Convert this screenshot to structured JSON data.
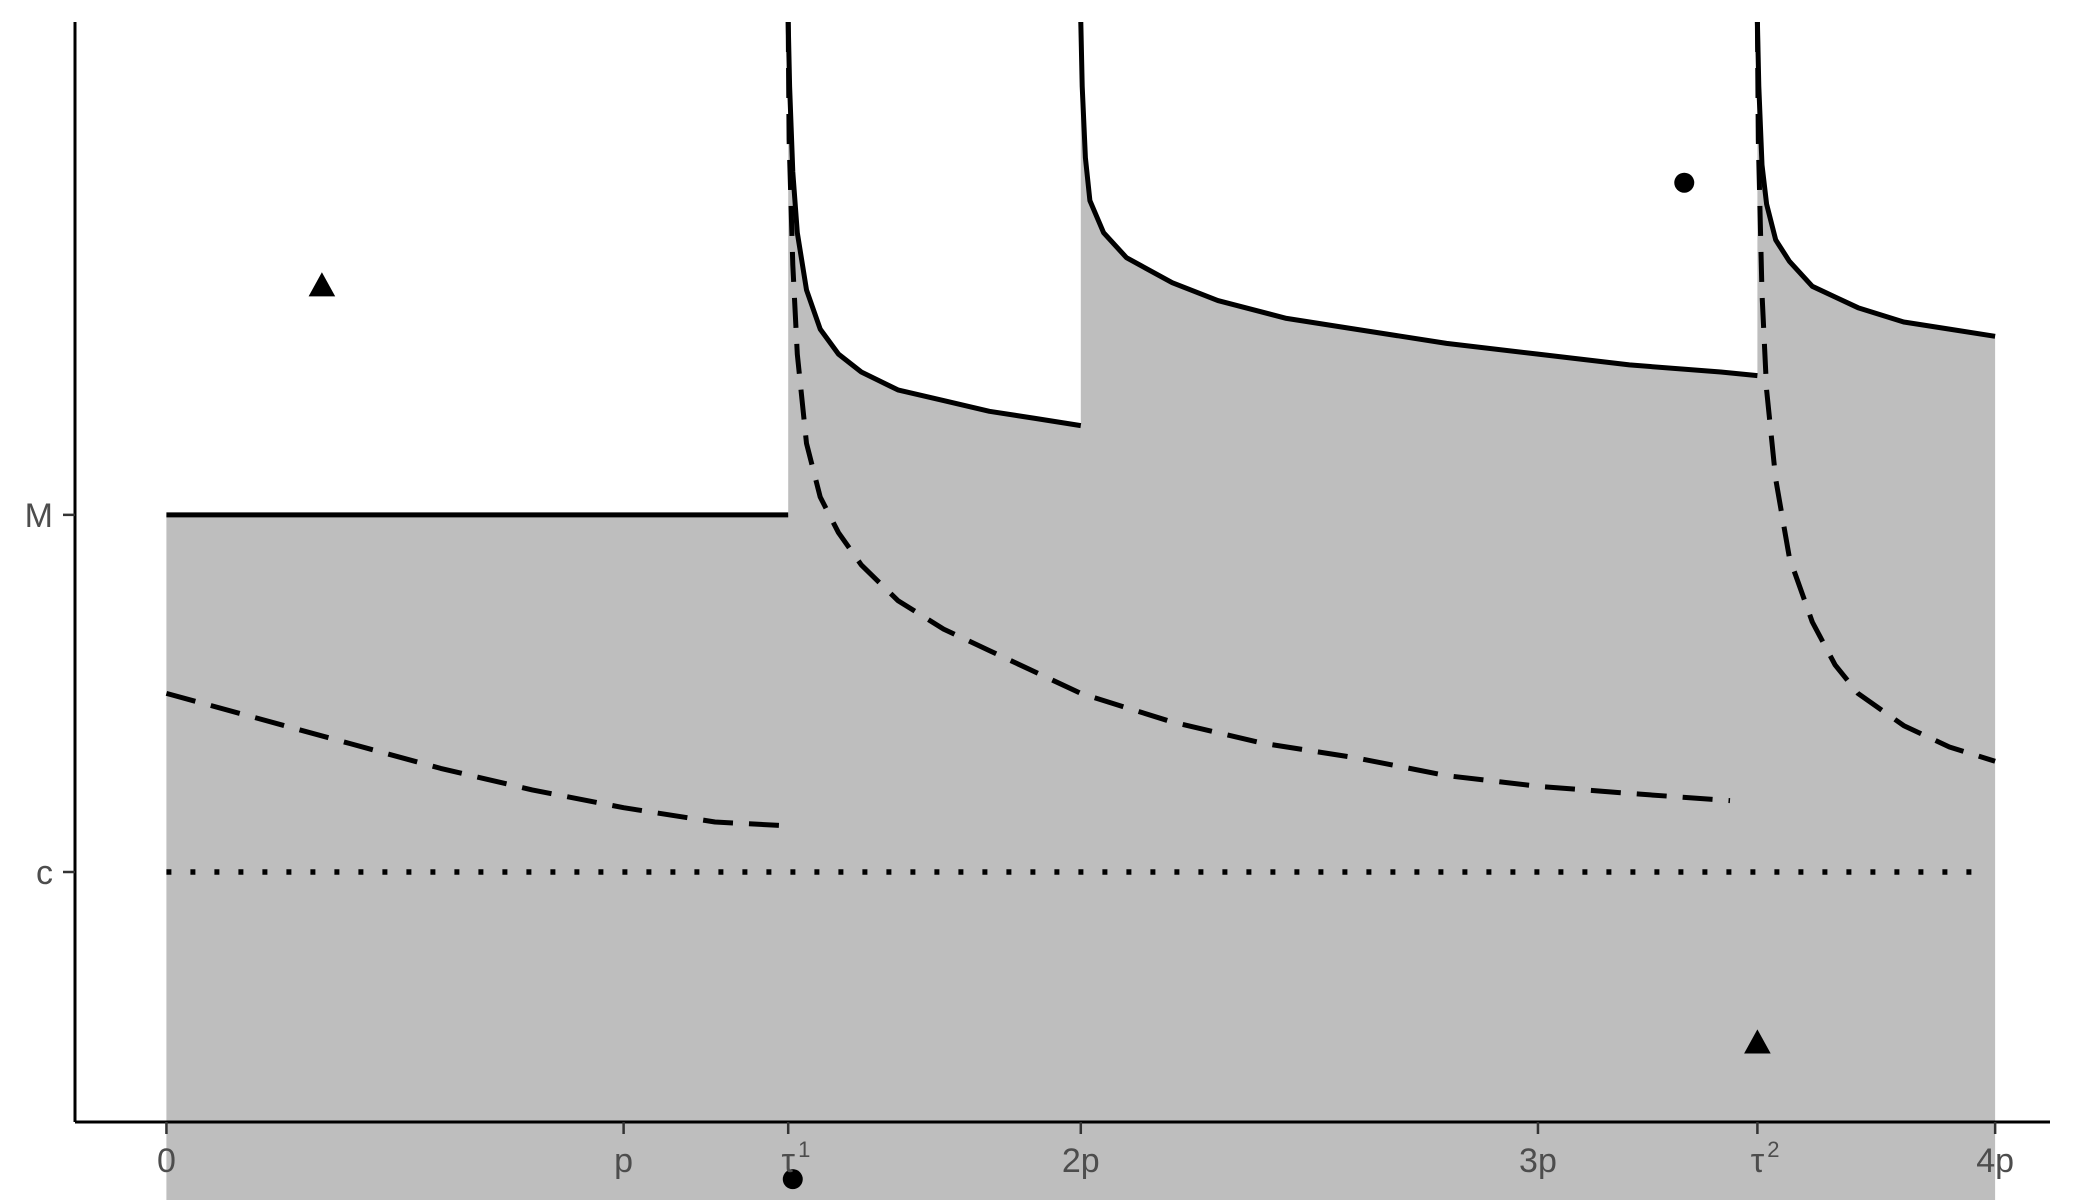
{
  "chart_data": {
    "type": "area",
    "title": "",
    "xlabel": "",
    "ylabel": "",
    "xlim": [
      -0.2,
      4.12
    ],
    "ylim": [
      -0.7,
      2.38
    ],
    "x_ticks": [
      {
        "value": 0,
        "label": "0",
        "sup": ""
      },
      {
        "value": 1,
        "label": "p",
        "sup": ""
      },
      {
        "value": 1.36,
        "label": "τ",
        "sup": "1"
      },
      {
        "value": 2,
        "label": "2p",
        "sup": ""
      },
      {
        "value": 3,
        "label": "3p",
        "sup": ""
      },
      {
        "value": 3.48,
        "label": "τ",
        "sup": "2"
      },
      {
        "value": 4,
        "label": "4p",
        "sup": ""
      }
    ],
    "y_ticks": [
      {
        "value": 1.0,
        "label": "M"
      },
      {
        "value": 0.0,
        "label": "c"
      }
    ],
    "shaded_region": {
      "floor": -1.0,
      "x_range": [
        0,
        4
      ],
      "upper": "solid"
    },
    "series": [
      {
        "style": "solid",
        "segments": [
          {
            "x": [
              0,
              1.36
            ],
            "y": [
              1.0,
              1.0
            ]
          },
          {
            "x": [
              1.36,
              1.363,
              1.37,
              1.38,
              1.4,
              1.43,
              1.47,
              1.52,
              1.6,
              1.7,
              1.8,
              1.9,
              2.0
            ],
            "y": [
              2.38,
              2.2,
              1.96,
              1.79,
              1.63,
              1.52,
              1.45,
              1.4,
              1.35,
              1.32,
              1.29,
              1.27,
              1.25
            ]
          },
          {
            "x": [
              2.0,
              2.003,
              2.01,
              2.02,
              2.05,
              2.1,
              2.2,
              2.3,
              2.45,
              2.6,
              2.8,
              3.0,
              3.2,
              3.4,
              3.48
            ],
            "y": [
              2.38,
              2.2,
              2.0,
              1.88,
              1.79,
              1.72,
              1.65,
              1.6,
              1.55,
              1.52,
              1.48,
              1.45,
              1.42,
              1.4,
              1.39
            ]
          },
          {
            "x": [
              3.48,
              3.483,
              3.49,
              3.5,
              3.52,
              3.55,
              3.6,
              3.65,
              3.7,
              3.8,
              3.9,
              4.0
            ],
            "y": [
              2.38,
              2.2,
              1.98,
              1.87,
              1.77,
              1.71,
              1.64,
              1.61,
              1.58,
              1.54,
              1.52,
              1.5
            ]
          }
        ]
      },
      {
        "style": "dashed",
        "segments": [
          {
            "x": [
              0,
              0.2,
              0.4,
              0.6,
              0.8,
              1.0,
              1.2,
              1.35
            ],
            "y": [
              0.5,
              0.43,
              0.36,
              0.29,
              0.23,
              0.18,
              0.14,
              0.13
            ]
          },
          {
            "x": [
              1.36,
              1.362,
              1.37,
              1.38,
              1.4,
              1.43,
              1.47,
              1.52,
              1.6,
              1.7,
              1.8,
              2.0,
              2.2,
              2.4,
              2.6,
              2.8,
              3.0,
              3.2,
              3.42
            ],
            "y": [
              2.38,
              2.05,
              1.7,
              1.45,
              1.2,
              1.05,
              0.95,
              0.86,
              0.76,
              0.68,
              0.62,
              0.5,
              0.42,
              0.36,
              0.32,
              0.27,
              0.24,
              0.22,
              0.2
            ]
          },
          {
            "x": [
              3.48,
              3.482,
              3.49,
              3.5,
              3.52,
              3.55,
              3.6,
              3.65,
              3.7,
              3.8,
              3.9,
              4.0
            ],
            "y": [
              2.38,
              2.05,
              1.62,
              1.35,
              1.1,
              0.88,
              0.7,
              0.58,
              0.5,
              0.41,
              0.35,
              0.31
            ]
          }
        ]
      },
      {
        "style": "dotted",
        "segments": [
          {
            "x": [
              0,
              3.96
            ],
            "y": [
              0.0,
              0.0
            ]
          }
        ]
      }
    ],
    "points": [
      {
        "shape": "triangle",
        "x": 0.34,
        "y": 1.64
      },
      {
        "shape": "circle",
        "x": 3.32,
        "y": 1.93
      },
      {
        "shape": "circle",
        "x": 1.37,
        "y": -0.86
      },
      {
        "shape": "triangle",
        "x": 3.48,
        "y": -0.48
      }
    ],
    "grid": false,
    "legend": "none"
  }
}
